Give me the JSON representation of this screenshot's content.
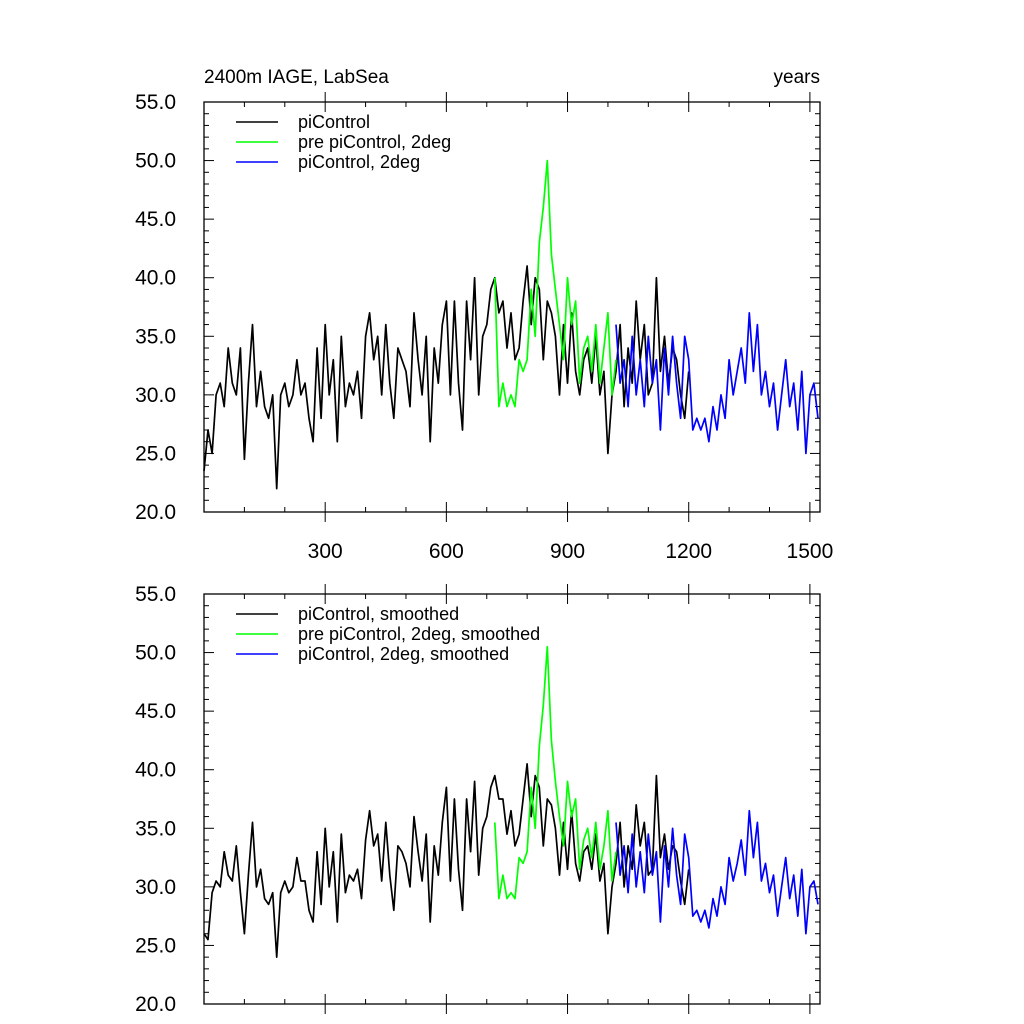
{
  "page": {
    "left_title": "2400m IAGE, LabSea",
    "right_title": "years"
  },
  "chart_data": [
    {
      "type": "line",
      "ylim": [
        20,
        55
      ],
      "xlim": [
        0,
        1525
      ],
      "yticks": [
        "20.0",
        "25.0",
        "30.0",
        "35.0",
        "40.0",
        "45.0",
        "50.0",
        "55.0"
      ],
      "xticks": [
        "300",
        "600",
        "900",
        "1200",
        "1500"
      ],
      "legend_position": "top-left",
      "series": [
        {
          "name": "piControl",
          "color": "#000000",
          "x": [
            0,
            10,
            20,
            30,
            40,
            50,
            60,
            70,
            80,
            90,
            100,
            110,
            120,
            130,
            140,
            150,
            160,
            170,
            180,
            190,
            200,
            210,
            220,
            230,
            240,
            250,
            260,
            270,
            280,
            290,
            300,
            310,
            320,
            330,
            340,
            350,
            360,
            370,
            380,
            390,
            400,
            410,
            420,
            430,
            440,
            450,
            460,
            470,
            480,
            490,
            500,
            510,
            520,
            530,
            540,
            550,
            560,
            570,
            580,
            590,
            600,
            610,
            620,
            630,
            640,
            650,
            660,
            670,
            680,
            690,
            700,
            710,
            720,
            730,
            740,
            750,
            760,
            770,
            780,
            790,
            800,
            810,
            820,
            830,
            840,
            850,
            860,
            870,
            880,
            890,
            900,
            910,
            920,
            930,
            940,
            950,
            960,
            970,
            980,
            990,
            1000,
            1010,
            1020,
            1030,
            1040,
            1050,
            1060,
            1070,
            1080,
            1090,
            1100,
            1110,
            1120,
            1130,
            1140,
            1150,
            1160,
            1170,
            1180,
            1190,
            1200
          ],
          "y": [
            23.5,
            27,
            25,
            30,
            31,
            29,
            34,
            31,
            30,
            34,
            24.5,
            31,
            36,
            29,
            32,
            29,
            28,
            30,
            22,
            30,
            31,
            29,
            30,
            33,
            30,
            31,
            28,
            26,
            34,
            28,
            36,
            30,
            33,
            26,
            35,
            29,
            31,
            30,
            32,
            28,
            35,
            37,
            33,
            35,
            30,
            36,
            31,
            28,
            34,
            33,
            32,
            29,
            37,
            33,
            30,
            35,
            26,
            34,
            31,
            36,
            38,
            30,
            38,
            31,
            27,
            38,
            33,
            40,
            30,
            35,
            36,
            39,
            40,
            37,
            38,
            34,
            37,
            33,
            34,
            38,
            41,
            36,
            40,
            39,
            33,
            38,
            37,
            35,
            30,
            36,
            31,
            37,
            32,
            30,
            33,
            34,
            31,
            35,
            30,
            32,
            25,
            30,
            32,
            36,
            29,
            34,
            31,
            38,
            33,
            36,
            30,
            31,
            40,
            32,
            35,
            31,
            34,
            33,
            30,
            28,
            32
          ]
        },
        {
          "name": "pre piControl, 2deg",
          "color": "#00ff00",
          "x": [
            720,
            730,
            740,
            750,
            760,
            770,
            780,
            790,
            800,
            810,
            820,
            830,
            840,
            850,
            860,
            870,
            880,
            890,
            900,
            910,
            920,
            930,
            940,
            950,
            960,
            970,
            980,
            990,
            1000,
            1010,
            1020
          ],
          "y": [
            40,
            29,
            31,
            29,
            30,
            29,
            33,
            32,
            33,
            39,
            35,
            43,
            46,
            50,
            42,
            39,
            36,
            33,
            40,
            36,
            38,
            31,
            34,
            35,
            32,
            36,
            31,
            34,
            37,
            30,
            33
          ]
        },
        {
          "name": "piControl, 2deg",
          "color": "#0000ff",
          "x": [
            1020,
            1030,
            1040,
            1050,
            1060,
            1070,
            1080,
            1090,
            1100,
            1110,
            1120,
            1130,
            1140,
            1150,
            1160,
            1170,
            1180,
            1190,
            1200,
            1210,
            1220,
            1230,
            1240,
            1250,
            1260,
            1270,
            1280,
            1290,
            1300,
            1310,
            1320,
            1330,
            1340,
            1350,
            1360,
            1370,
            1380,
            1390,
            1400,
            1410,
            1420,
            1430,
            1440,
            1450,
            1460,
            1470,
            1480,
            1490,
            1500,
            1510,
            1520
          ],
          "y": [
            36,
            31,
            33,
            29,
            35,
            30,
            33,
            29,
            35,
            31,
            33,
            27,
            34,
            30,
            35,
            31,
            28,
            35,
            33,
            27,
            28,
            27,
            28,
            26,
            29,
            27,
            30,
            28,
            33,
            30,
            32,
            34,
            31,
            37,
            32,
            36,
            30,
            32,
            29,
            31,
            27,
            30,
            33,
            29,
            31,
            27,
            32,
            25,
            30,
            31,
            28
          ]
        }
      ]
    },
    {
      "type": "line",
      "ylim": [
        20,
        55
      ],
      "xlim": [
        0,
        1525
      ],
      "yticks": [
        "20.0",
        "25.0",
        "30.0",
        "35.0",
        "40.0",
        "45.0",
        "50.0",
        "55.0"
      ],
      "legend_position": "top-left",
      "series": [
        {
          "name": "piControl, smoothed",
          "color": "#000000",
          "x": [
            0,
            10,
            20,
            30,
            40,
            50,
            60,
            70,
            80,
            90,
            100,
            110,
            120,
            130,
            140,
            150,
            160,
            170,
            180,
            190,
            200,
            210,
            220,
            230,
            240,
            250,
            260,
            270,
            280,
            290,
            300,
            310,
            320,
            330,
            340,
            350,
            360,
            370,
            380,
            390,
            400,
            410,
            420,
            430,
            440,
            450,
            460,
            470,
            480,
            490,
            500,
            510,
            520,
            530,
            540,
            550,
            560,
            570,
            580,
            590,
            600,
            610,
            620,
            630,
            640,
            650,
            660,
            670,
            680,
            690,
            700,
            710,
            720,
            730,
            740,
            750,
            760,
            770,
            780,
            790,
            800,
            810,
            820,
            830,
            840,
            850,
            860,
            870,
            880,
            890,
            900,
            910,
            920,
            930,
            940,
            950,
            960,
            970,
            980,
            990,
            1000,
            1010,
            1020,
            1030,
            1040,
            1050,
            1060,
            1070,
            1080,
            1090,
            1100,
            1110,
            1120,
            1130,
            1140,
            1150,
            1160,
            1170,
            1180,
            1190,
            1200
          ],
          "y": [
            26,
            25.5,
            29.5,
            30.5,
            30,
            33,
            31,
            30.5,
            33.5,
            29.5,
            26,
            31,
            35.5,
            30,
            31.5,
            29,
            28.5,
            29.5,
            24,
            29.5,
            30.5,
            29.5,
            30,
            32.5,
            30.5,
            30.5,
            28,
            27,
            33,
            28.5,
            35,
            30,
            33,
            27,
            34.5,
            29.5,
            31,
            30.5,
            31.5,
            29,
            34,
            36.5,
            33.5,
            34.5,
            30.5,
            35.5,
            31,
            28,
            33.5,
            33,
            32,
            30,
            36,
            33,
            30.5,
            34.5,
            27,
            33.5,
            31,
            35.5,
            38.5,
            30.5,
            37.5,
            31.5,
            28,
            37.5,
            33,
            39,
            31,
            35,
            36,
            38.5,
            39.5,
            37.5,
            37.5,
            34.5,
            36.5,
            33.5,
            34.5,
            37.5,
            40.5,
            36,
            39.5,
            38.5,
            33.5,
            37.5,
            37,
            35,
            31,
            35.5,
            31.5,
            36.5,
            32,
            30.5,
            33,
            33.5,
            31.5,
            34.5,
            30.5,
            32,
            26,
            30,
            32,
            35.5,
            30,
            33.5,
            31.5,
            37,
            33.5,
            35.5,
            31,
            31.5,
            39.5,
            32.5,
            34.5,
            31.5,
            33.5,
            33,
            30.5,
            28.5,
            31.5
          ]
        },
        {
          "name": "pre piControl, 2deg, smoothed",
          "color": "#00ff00",
          "x": [
            720,
            730,
            740,
            750,
            760,
            770,
            780,
            790,
            800,
            810,
            820,
            830,
            840,
            850,
            860,
            870,
            880,
            890,
            900,
            910,
            920,
            930,
            940,
            950,
            960,
            970,
            980,
            990,
            1000,
            1010,
            1020
          ],
          "y": [
            35.5,
            29,
            31,
            29,
            29.5,
            29,
            32.5,
            32,
            33,
            38.5,
            35,
            42,
            45.5,
            50.5,
            42.5,
            39,
            36,
            33.5,
            39,
            36,
            37.5,
            31.5,
            34,
            35,
            32.5,
            35.5,
            31.5,
            33.5,
            36.5,
            30.5,
            33
          ]
        },
        {
          "name": "piControl, 2deg, smoothed",
          "color": "#0000ff",
          "x": [
            1020,
            1030,
            1040,
            1050,
            1060,
            1070,
            1080,
            1090,
            1100,
            1110,
            1120,
            1130,
            1140,
            1150,
            1160,
            1170,
            1180,
            1190,
            1200,
            1210,
            1220,
            1230,
            1240,
            1250,
            1260,
            1270,
            1280,
            1290,
            1300,
            1310,
            1320,
            1330,
            1340,
            1350,
            1360,
            1370,
            1380,
            1390,
            1400,
            1410,
            1420,
            1430,
            1440,
            1450,
            1460,
            1470,
            1480,
            1490,
            1500,
            1510,
            1520
          ],
          "y": [
            35.5,
            31,
            33.5,
            29.5,
            34.5,
            30,
            33,
            29.5,
            34.5,
            31,
            33,
            27,
            33.5,
            30,
            35,
            31,
            28.5,
            34.5,
            32.5,
            27.5,
            28,
            27,
            28,
            26.5,
            29,
            27.5,
            30,
            28.5,
            32.5,
            30.5,
            32,
            34,
            31,
            36.5,
            32.5,
            35.5,
            30.5,
            32,
            29.5,
            31,
            27.5,
            30,
            32.5,
            29,
            31,
            27.5,
            31.5,
            26,
            30,
            30.5,
            28.5
          ]
        }
      ]
    }
  ]
}
